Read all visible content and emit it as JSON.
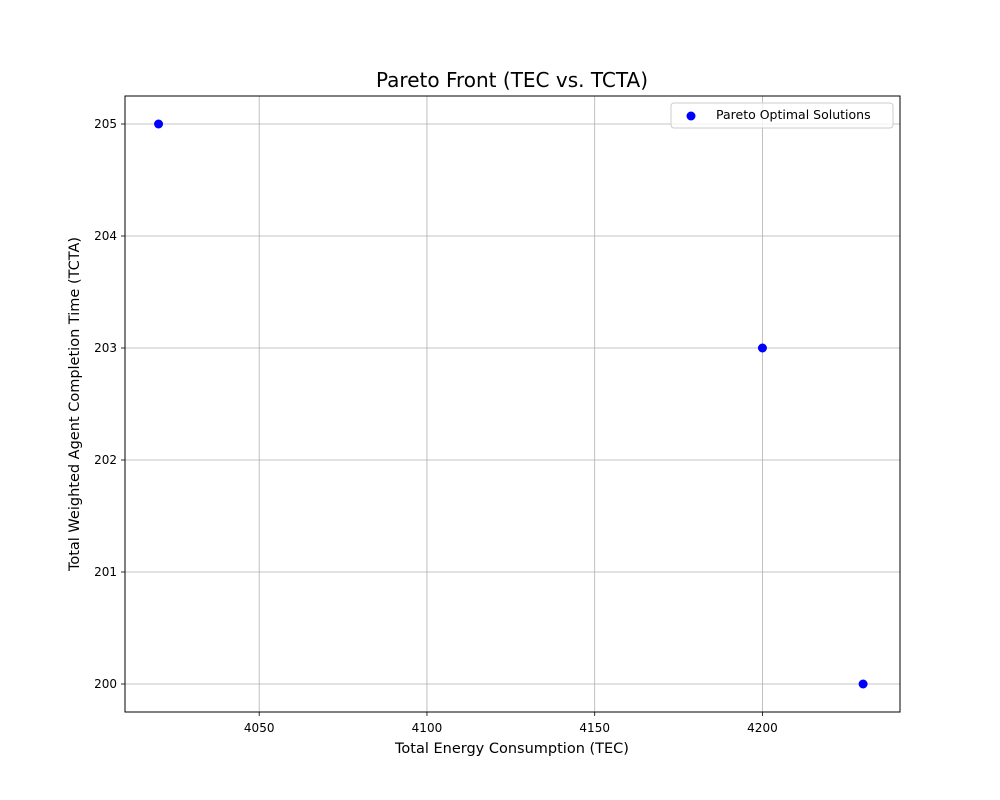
{
  "chart_data": {
    "type": "scatter",
    "title": "Pareto Front (TEC vs. TCTA)",
    "xlabel": "Total Energy Consumption (TEC)",
    "ylabel": "Total Weighted Agent Completion Time (TCTA)",
    "xlim": [
      4010,
      4241
    ],
    "ylim": [
      199.75,
      205.25
    ],
    "xticks": [
      4050,
      4100,
      4150,
      4200
    ],
    "yticks": [
      200,
      201,
      202,
      203,
      204,
      205
    ],
    "xtick_labels": [
      "4050",
      "4100",
      "4150",
      "4200"
    ],
    "ytick_labels": [
      "200",
      "201",
      "202",
      "203",
      "204",
      "205"
    ],
    "grid": true,
    "legend_position": "top-right",
    "series": [
      {
        "name": "Pareto Optimal Solutions",
        "color": "#0000ff",
        "points": [
          {
            "x": 4020,
            "y": 205
          },
          {
            "x": 4200,
            "y": 203
          },
          {
            "x": 4230,
            "y": 200
          }
        ]
      }
    ]
  }
}
